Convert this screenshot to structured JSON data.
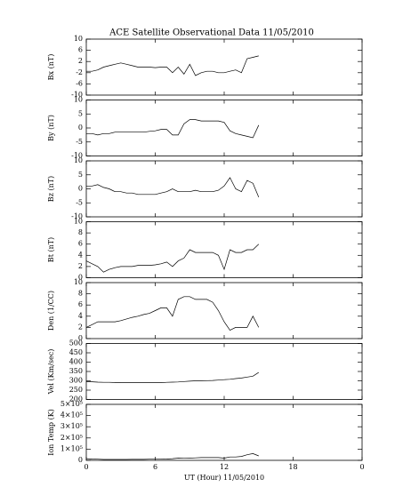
{
  "chart_data": [
    {
      "type": "line",
      "title": "ACE Satellite Observational Data   11/05/2010",
      "ylabel": "Bx (nT)",
      "x": [
        0,
        0.5,
        1,
        1.5,
        2,
        2.5,
        3,
        3.5,
        4,
        4.5,
        5,
        5.5,
        6,
        6.5,
        7,
        7.5,
        8,
        8.5,
        9,
        9.5,
        10,
        10.5,
        11,
        11.5,
        12,
        12.5,
        13,
        13.5,
        14,
        14.5,
        15
      ],
      "values": [
        -1.5,
        -1.5,
        -1,
        0,
        0.5,
        1,
        1.5,
        1,
        0.5,
        0,
        0,
        0,
        -0.2,
        0,
        0,
        -2,
        0,
        -2.5,
        1,
        -3,
        -2,
        -1.5,
        -1.5,
        -2,
        -2,
        -1.5,
        -1,
        -2,
        3,
        3.5,
        4
      ],
      "xlim": [
        0,
        24
      ],
      "xticks": [
        0,
        6,
        12,
        18,
        {
          "value": 24,
          "label": "0"
        }
      ],
      "ylim": [
        -10,
        10
      ],
      "yticks": [
        -10,
        -6,
        -2,
        2,
        6,
        10
      ],
      "color": "#000000"
    },
    {
      "type": "line",
      "ylabel": "By (nT)",
      "x": [
        0,
        0.5,
        1,
        1.5,
        2,
        2.5,
        3,
        3.5,
        4,
        4.5,
        5,
        5.5,
        6,
        6.5,
        7,
        7.5,
        8,
        8.5,
        9,
        9.5,
        10,
        10.5,
        11,
        11.5,
        12,
        12.5,
        13,
        13.5,
        14,
        14.5,
        15
      ],
      "values": [
        -2,
        -2,
        -2.5,
        -2,
        -2,
        -1.5,
        -1.5,
        -1.5,
        -1.5,
        -1.5,
        -1.5,
        -1.2,
        -1,
        -0.5,
        -0.5,
        -2.5,
        -2.5,
        1.5,
        3,
        3,
        2.5,
        2.5,
        2.5,
        2.5,
        2,
        -1,
        -2,
        -2.5,
        -3,
        -3.5,
        1
      ],
      "xlim": [
        0,
        24
      ],
      "xticks": [
        0,
        6,
        12,
        18,
        {
          "value": 24,
          "label": "0"
        }
      ],
      "ylim": [
        -10,
        10
      ],
      "yticks": [
        -10,
        -5,
        0,
        5,
        10
      ],
      "color": "#000000"
    },
    {
      "type": "line",
      "ylabel": "Bz (nT)",
      "x": [
        0,
        0.5,
        1,
        1.5,
        2,
        2.5,
        3,
        3.5,
        4,
        4.5,
        5,
        5.5,
        6,
        6.5,
        7,
        7.5,
        8,
        8.5,
        9,
        9.5,
        10,
        10.5,
        11,
        11.5,
        12,
        12.5,
        13,
        13.5,
        14,
        14.5,
        15
      ],
      "values": [
        1,
        1,
        1.5,
        0.5,
        0,
        -1,
        -1,
        -1.5,
        -1.5,
        -2,
        -2,
        -2,
        -2,
        -1.5,
        -1,
        0,
        -1,
        -1,
        -1,
        -0.5,
        -1,
        -1,
        -1,
        -0.5,
        1,
        4,
        0,
        -1,
        3,
        2,
        -3
      ],
      "xlim": [
        0,
        24
      ],
      "xticks": [
        0,
        6,
        12,
        18,
        {
          "value": 24,
          "label": "0"
        }
      ],
      "ylim": [
        -10,
        10
      ],
      "yticks": [
        -10,
        -5,
        0,
        5,
        10
      ],
      "color": "#000000"
    },
    {
      "type": "line",
      "ylabel": "Bt (nT)",
      "x": [
        0,
        0.5,
        1,
        1.5,
        2,
        2.5,
        3,
        3.5,
        4,
        4.5,
        5,
        5.5,
        6,
        6.5,
        7,
        7.5,
        8,
        8.5,
        9,
        9.5,
        10,
        10.5,
        11,
        11.5,
        12,
        12.5,
        13,
        13.5,
        14,
        14.5,
        15
      ],
      "values": [
        3,
        2.5,
        2,
        1,
        1.5,
        1.8,
        2,
        2,
        2,
        2.2,
        2.2,
        2.2,
        2.3,
        2.5,
        2.8,
        2,
        3,
        3.5,
        5,
        4.5,
        4.5,
        4.5,
        4.5,
        4,
        1.5,
        5,
        4.5,
        4.5,
        5,
        5,
        6
      ],
      "xlim": [
        0,
        24
      ],
      "xticks": [
        0,
        6,
        12,
        18,
        {
          "value": 24,
          "label": "0"
        }
      ],
      "ylim": [
        0,
        10
      ],
      "yticks": [
        0,
        2,
        4,
        6,
        8,
        10
      ],
      "color": "#000000"
    },
    {
      "type": "line",
      "ylabel": "Den (1/CC)",
      "x": [
        0,
        0.5,
        1,
        1.5,
        2,
        2.5,
        3,
        3.5,
        4,
        4.5,
        5,
        5.5,
        6,
        6.5,
        7,
        7.5,
        8,
        8.5,
        9,
        9.5,
        10,
        10.5,
        11,
        11.5,
        12,
        12.5,
        13,
        13.5,
        14,
        14.5,
        15
      ],
      "values": [
        2,
        2.5,
        3,
        3,
        3,
        3,
        3.2,
        3.5,
        3.8,
        4,
        4.3,
        4.5,
        5,
        5.5,
        5.5,
        4,
        7,
        7.5,
        7.5,
        7,
        7,
        7,
        6.5,
        5,
        3,
        1.5,
        2,
        2,
        2,
        4,
        2
      ],
      "xlim": [
        0,
        24
      ],
      "xticks": [
        0,
        6,
        12,
        18,
        {
          "value": 24,
          "label": "0"
        }
      ],
      "ylim": [
        0,
        10
      ],
      "yticks": [
        0,
        2,
        4,
        6,
        8,
        10
      ],
      "color": "#000000"
    },
    {
      "type": "line",
      "ylabel": "Vel (Km/sec)",
      "x": [
        0,
        0.5,
        1,
        1.5,
        2,
        2.5,
        3,
        3.5,
        4,
        4.5,
        5,
        5.5,
        6,
        6.5,
        7,
        7.5,
        8,
        8.5,
        9,
        9.5,
        10,
        10.5,
        11,
        11.5,
        12,
        12.5,
        13,
        13.5,
        14,
        14.5,
        15
      ],
      "values": [
        295,
        295,
        293,
        292,
        292,
        291,
        290,
        290,
        290,
        290,
        290,
        290,
        290,
        290,
        292,
        293,
        294,
        296,
        298,
        300,
        300,
        301,
        302,
        304,
        306,
        308,
        312,
        315,
        320,
        325,
        345
      ],
      "xlim": [
        0,
        24
      ],
      "xticks": [
        0,
        6,
        12,
        18,
        {
          "value": 24,
          "label": "0"
        }
      ],
      "ylim": [
        200,
        500
      ],
      "yticks": [
        200,
        250,
        300,
        350,
        400,
        450,
        500
      ],
      "color": "#000000"
    },
    {
      "type": "line",
      "ylabel": "Ion Temp (K)",
      "xlabel": "UT (Hour)  11/05/2010",
      "x": [
        0,
        0.5,
        1,
        1.5,
        2,
        2.5,
        3,
        3.5,
        4,
        4.5,
        5,
        5.5,
        6,
        6.5,
        7,
        7.5,
        8,
        8.5,
        9,
        9.5,
        10,
        10.5,
        11,
        11.5,
        12,
        12.5,
        13,
        13.5,
        14,
        14.5,
        15
      ],
      "values": [
        15000,
        12000,
        10000,
        8000,
        8000,
        8000,
        8000,
        8000,
        9000,
        9000,
        9000,
        10000,
        10000,
        10000,
        12000,
        15000,
        20000,
        18000,
        20000,
        22000,
        25000,
        25000,
        25000,
        25000,
        20000,
        30000,
        30000,
        35000,
        50000,
        60000,
        40000
      ],
      "xlim": [
        0,
        24
      ],
      "xticks": [
        0,
        6,
        12,
        18,
        {
          "value": 24,
          "label": "0"
        }
      ],
      "ylim": [
        0,
        500000
      ],
      "yticks": [
        0,
        {
          "value": 100000,
          "label": "1×10⁵"
        },
        {
          "value": 200000,
          "label": "2×10⁵"
        },
        {
          "value": 300000,
          "label": "3×10⁵"
        },
        {
          "value": 400000,
          "label": "4×10⁵"
        },
        {
          "value": 500000,
          "label": "5×10⁵"
        }
      ],
      "color": "#000000"
    }
  ]
}
